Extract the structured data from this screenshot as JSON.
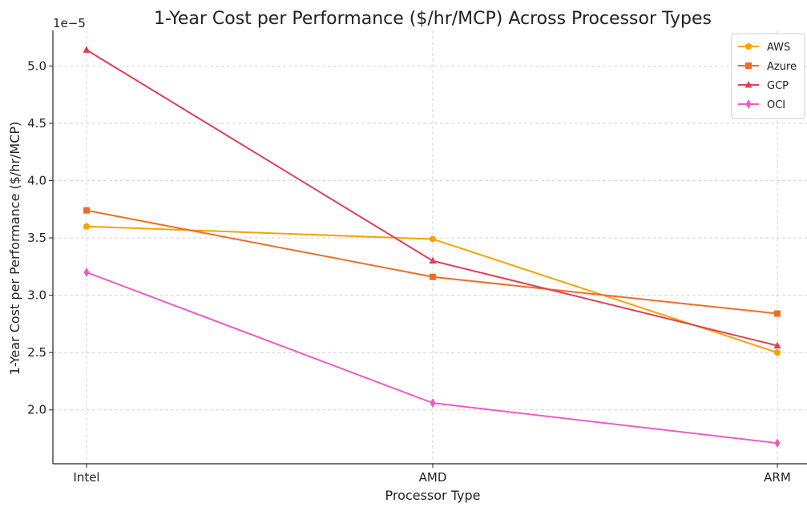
{
  "chart_data": {
    "type": "line",
    "title": "1-Year Cost per Performance ($/hr/MCP) Across Processor Types",
    "xlabel": "Processor Type",
    "ylabel": "1-Year Cost per Performance ($/hr/MCP)",
    "offset_text": "1e−5",
    "categories": [
      "Intel",
      "AMD",
      "ARM"
    ],
    "y_scale_factor": 1e-05,
    "ylim": [
      1.53,
      5.31
    ],
    "yticks": [
      2.0,
      2.5,
      3.0,
      3.5,
      4.0,
      4.5,
      5.0
    ],
    "ytick_labels": [
      "2.0",
      "2.5",
      "3.0",
      "3.5",
      "4.0",
      "4.5",
      "5.0"
    ],
    "grid": true,
    "legend_position": "top-right",
    "series": [
      {
        "name": "AWS",
        "color": "#f5a300",
        "marker": "circle",
        "values": [
          3.6,
          3.49,
          2.5
        ]
      },
      {
        "name": "Azure",
        "color": "#ee6d25",
        "marker": "square",
        "values": [
          3.74,
          3.16,
          2.84
        ]
      },
      {
        "name": "GCP",
        "color": "#e23e55",
        "marker": "triangle",
        "values": [
          5.14,
          3.3,
          2.56
        ]
      },
      {
        "name": "OCI",
        "color": "#ee5bc6",
        "marker": "diamond",
        "values": [
          3.2,
          2.06,
          1.71
        ]
      }
    ]
  }
}
